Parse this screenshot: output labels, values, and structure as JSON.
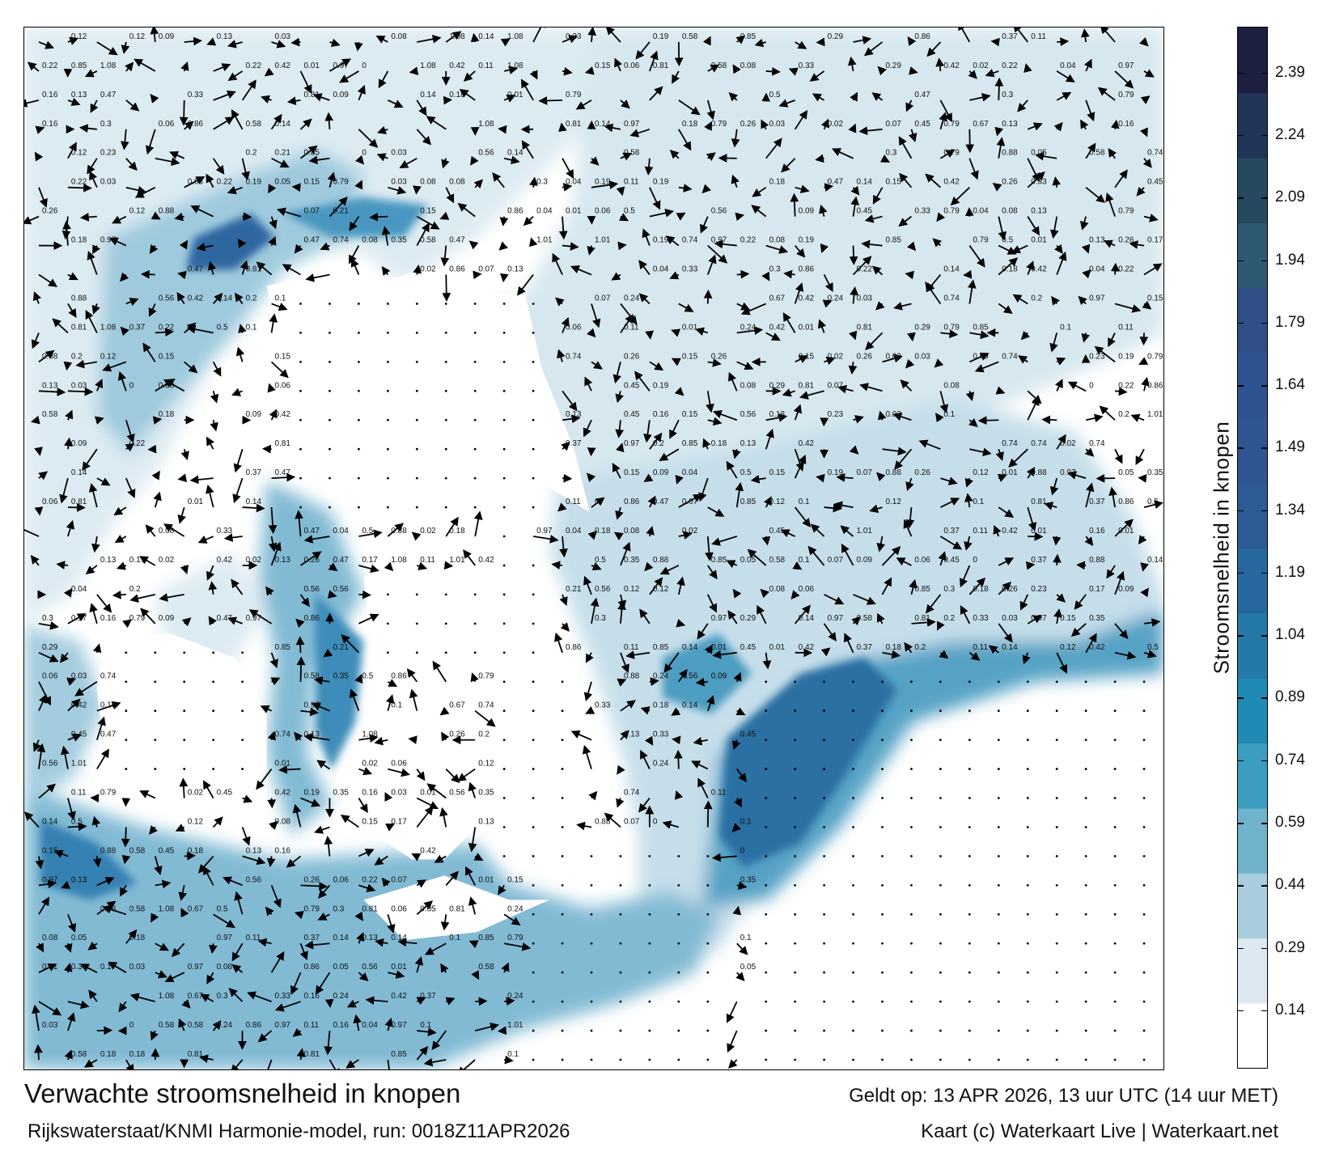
{
  "map": {
    "title": "Verwachte stroomsnelheid in knopen",
    "valid_time": "Geldt op: 13 APR 2026, 13 uur UTC (14 uur MET)",
    "source": "Rijkswaterstaat/KNMI Harmonie-model, run: 0018Z11APR2026",
    "credit": "Kaart (c) Waterkaart Live | Waterkaart.net",
    "sample_labels": [
      "0.18",
      "0.15",
      "0.11",
      "0.12",
      "0.14",
      "0.13",
      "0.1",
      "0.09",
      "0.05",
      "0.07",
      "0.06",
      "0.08",
      "0.04",
      "0.03",
      "0.17",
      "0.16",
      "0.2",
      "0.24",
      "0.23",
      "0.22",
      "0.3",
      "0.33",
      "0.35",
      "0.42",
      "0.47",
      "0.5",
      "0.58",
      "0.67",
      "0.81",
      "0.88",
      "1.08",
      "1.01",
      "0.86",
      "0.97",
      "0.85",
      "0.79",
      "0.74",
      "0.56",
      "0.45",
      "0.37",
      "0.29",
      "0.26",
      "0.21",
      "0.19",
      "0.02",
      "0.01",
      "0"
    ]
  },
  "colorbar": {
    "label": "Stroomsnelheid in knopen",
    "ticks": [
      "2.39",
      "2.24",
      "2.09",
      "1.94",
      "1.79",
      "1.64",
      "1.49",
      "1.34",
      "1.19",
      "1.04",
      "0.89",
      "0.74",
      "0.59",
      "0.44",
      "0.29",
      "0.14"
    ],
    "min": 0,
    "max": 2.5,
    "colors": [
      "#ffffff",
      "#dce9f0",
      "#a9cddd",
      "#6fb2cc",
      "#3b9dbf",
      "#1f8ab5",
      "#2479a8",
      "#27679f",
      "#2c5b96",
      "#2d5590",
      "#2f5390",
      "#2f4f86",
      "#2c5a72",
      "#25495e",
      "#21345a",
      "#1d1f40"
    ]
  }
}
